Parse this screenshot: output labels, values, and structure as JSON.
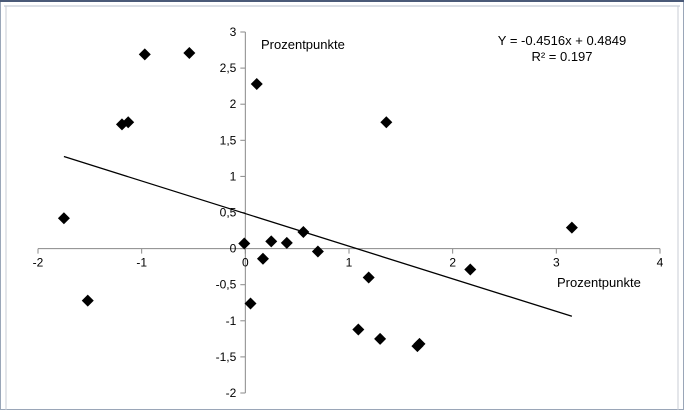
{
  "chart_data": {
    "type": "scatter",
    "title": "",
    "xlabel": "Prozentpunkte",
    "ylabel": "Prozentpunkte",
    "xlim": [
      -2,
      4
    ],
    "ylim": [
      -2,
      3
    ],
    "x_ticks": [
      "-2",
      "-1",
      "0",
      "1",
      "2",
      "3",
      "4"
    ],
    "y_ticks": [
      "-2",
      "-1,5",
      "-1",
      "-0,5",
      "0",
      "0,5",
      "1",
      "1,5",
      "2",
      "2,5",
      "3"
    ],
    "x_tick_values": [
      -2,
      -1,
      0,
      1,
      2,
      3,
      4
    ],
    "y_tick_values": [
      -2,
      -1.5,
      -1,
      -0.5,
      0,
      0.5,
      1,
      1.5,
      2,
      2.5,
      3
    ],
    "grid": false,
    "legend": "none",
    "marker": "diamond",
    "marker_color": "#000000",
    "points": [
      {
        "x": -1.75,
        "y": 0.42
      },
      {
        "x": -1.52,
        "y": -0.72
      },
      {
        "x": -1.19,
        "y": 1.72
      },
      {
        "x": -1.13,
        "y": 1.75
      },
      {
        "x": -0.97,
        "y": 2.69
      },
      {
        "x": -0.54,
        "y": 2.71
      },
      {
        "x": -0.01,
        "y": 0.07
      },
      {
        "x": 0.05,
        "y": -0.76
      },
      {
        "x": 0.11,
        "y": 2.28
      },
      {
        "x": 0.17,
        "y": -0.14
      },
      {
        "x": 0.25,
        "y": 0.1
      },
      {
        "x": 0.4,
        "y": 0.08
      },
      {
        "x": 0.56,
        "y": 0.23
      },
      {
        "x": 0.7,
        "y": -0.04
      },
      {
        "x": 1.09,
        "y": -1.12
      },
      {
        "x": 1.19,
        "y": -0.4
      },
      {
        "x": 1.3,
        "y": -1.25
      },
      {
        "x": 1.36,
        "y": 1.75
      },
      {
        "x": 1.66,
        "y": -1.35
      },
      {
        "x": 1.68,
        "y": -1.32
      },
      {
        "x": 2.17,
        "y": -0.29
      },
      {
        "x": 3.15,
        "y": 0.29
      }
    ],
    "trendline": {
      "slope": -0.4516,
      "intercept": 0.4849,
      "x_range": [
        -1.75,
        3.15
      ],
      "equation": "Y = -0.4516x + 0.4849",
      "r_squared": "R² = 0.197"
    }
  }
}
